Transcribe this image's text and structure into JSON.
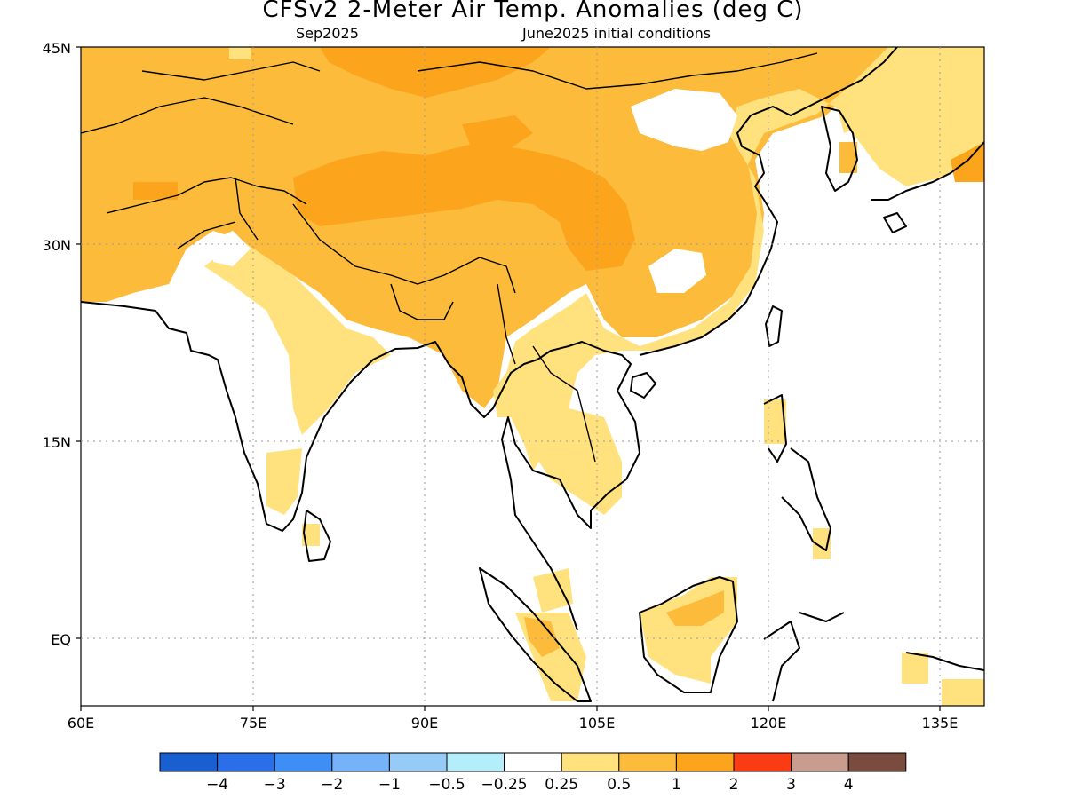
{
  "title": "CFSv2 2-Meter Air Temp. Anomalies (deg C)",
  "subtitle_left": "Sep2025",
  "subtitle_right": "June2025 initial conditions",
  "lat_labels": [
    "45N",
    "30N",
    "15N",
    "EQ"
  ],
  "lon_labels": [
    "60E",
    "75E",
    "90E",
    "105E",
    "120E",
    "135E"
  ],
  "colorbar": {
    "colors": [
      "#1a5fd0",
      "#2a6fe8",
      "#3d8ff5",
      "#76b2f7",
      "#96cbf7",
      "#b4eefb",
      "#ffffff",
      "#ffe27e",
      "#fdbb3c",
      "#fca41c",
      "#f93c13",
      "#c99c90",
      "#7a4c3f"
    ],
    "labels": [
      "−4",
      "−3",
      "−2",
      "−1",
      "−0.5",
      "−0.25",
      "0.25",
      "0.5",
      "1",
      "2",
      "3",
      "4"
    ]
  },
  "anomaly_colors": {
    "0.25-0.5": "#ffe27e",
    "0.5-1": "#fdbb3c",
    "1-2": "#fca41c"
  }
}
